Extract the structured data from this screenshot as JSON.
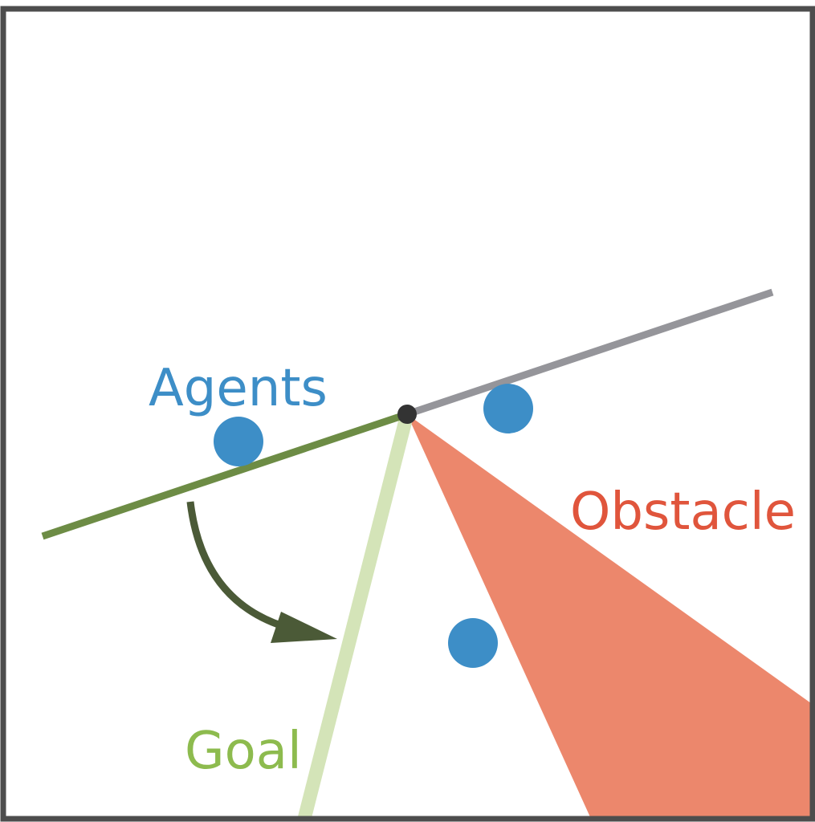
{
  "labels": {
    "agents": "Agents",
    "obstacle": "Obstacle",
    "goal": "Goal"
  },
  "colors": {
    "frame": "#4d4d4d",
    "agent": "#3d8ec7",
    "agents_text": "#3d8ec7",
    "obstacle_fill": "#ec876c",
    "obstacle_text": "#e0553c",
    "goal_line": "#d4e4b8",
    "goal_text": "#8dbb4e",
    "green_line": "#6d8c45",
    "gray_line": "#95959a",
    "pivot": "#333333",
    "arrow": "#4b5a37"
  }
}
